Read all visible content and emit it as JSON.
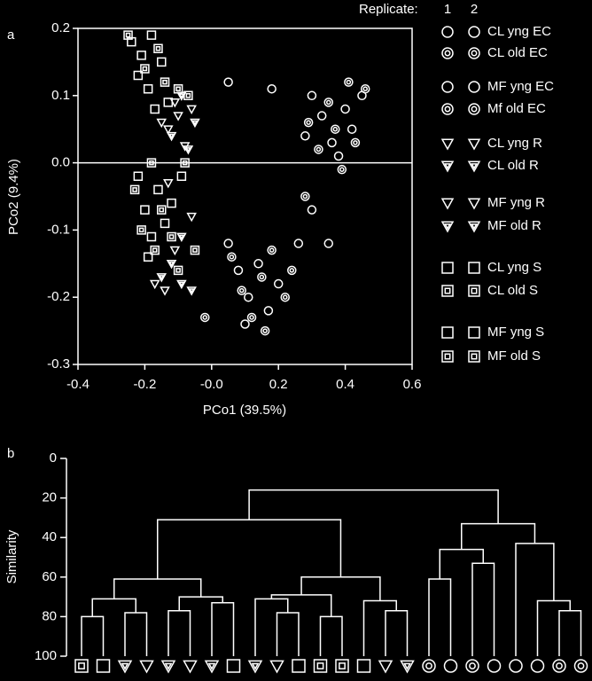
{
  "chart_data": [
    {
      "type": "scatter",
      "panel_label": "a",
      "xlabel": "PCo1 (39.5%)",
      "ylabel": "PCo2 (9.4%)",
      "xlim": [
        -0.4,
        0.6
      ],
      "ylim": [
        -0.3,
        0.2
      ],
      "xticks": [
        -0.4,
        -0.2,
        {
          "value": 0,
          "label": "-0.0"
        },
        0.2,
        0.4,
        0.6
      ],
      "yticks": [
        0.2,
        0.1,
        {
          "value": 0,
          "label": "0.0"
        },
        -0.1,
        -0.2,
        -0.3
      ],
      "zero_line": true,
      "color": "#ffffff",
      "legend_title": "Replicate:",
      "replicates": [
        "1",
        "2"
      ],
      "series": [
        {
          "name": "CL yng EC",
          "marker": "circle",
          "x": [
            0.28,
            0.33,
            0.36,
            0.4,
            0.42,
            0.45,
            0.38,
            0.3,
            0.05,
            0.18
          ],
          "y": [
            0.04,
            0.07,
            0.03,
            0.08,
            0.05,
            0.1,
            0.01,
            0.1,
            0.12,
            0.11
          ]
        },
        {
          "name": "CL old EC",
          "marker": "circle-double",
          "x": [
            0.32,
            0.35,
            0.39,
            0.43,
            0.46,
            0.29,
            0.41,
            0.37
          ],
          "y": [
            0.02,
            0.09,
            -0.01,
            0.03,
            0.11,
            0.06,
            0.12,
            0.05
          ]
        },
        {
          "name": "MF yng EC",
          "marker": "circle",
          "x": [
            0.05,
            0.08,
            0.11,
            0.14,
            0.17,
            0.2,
            0.1,
            0.26,
            0.35,
            0.3
          ],
          "y": [
            -0.12,
            -0.16,
            -0.2,
            -0.15,
            -0.22,
            -0.18,
            -0.24,
            -0.12,
            -0.12,
            -0.07
          ]
        },
        {
          "name": "Mf old EC",
          "marker": "circle-double",
          "x": [
            0.06,
            0.09,
            0.12,
            0.15,
            0.18,
            0.22,
            0.28,
            -0.02,
            0.16,
            0.24
          ],
          "y": [
            -0.14,
            -0.19,
            -0.23,
            -0.17,
            -0.13,
            -0.2,
            -0.05,
            -0.23,
            -0.25,
            -0.16
          ]
        },
        {
          "name": "CL yng R",
          "marker": "triangle",
          "x": [
            -0.13,
            -0.1,
            -0.06,
            -0.15,
            -0.08,
            -0.11
          ],
          "y": [
            0.05,
            0.07,
            0.08,
            0.06,
            0.025,
            0.09
          ]
        },
        {
          "name": "CL old R",
          "marker": "triangle-double",
          "x": [
            -0.07,
            -0.12,
            -0.05,
            -0.09
          ],
          "y": [
            0.02,
            0.04,
            0.06,
            0.1
          ]
        },
        {
          "name": "MF yng R",
          "marker": "triangle",
          "x": [
            -0.17,
            -0.14,
            -0.11,
            -0.13,
            -0.06
          ],
          "y": [
            -0.18,
            -0.19,
            -0.13,
            -0.03,
            -0.08
          ]
        },
        {
          "name": "MF old R",
          "marker": "triangle-double",
          "x": [
            -0.15,
            -0.12,
            -0.09,
            -0.06,
            -0.09
          ],
          "y": [
            -0.17,
            -0.15,
            -0.18,
            -0.19,
            -0.11
          ]
        },
        {
          "name": "CL yng S",
          "marker": "square",
          "x": [
            -0.24,
            -0.21,
            -0.18,
            -0.22,
            -0.19,
            -0.15,
            -0.13,
            -0.17
          ],
          "y": [
            0.18,
            0.16,
            0.19,
            0.13,
            0.11,
            0.15,
            0.09,
            0.08
          ]
        },
        {
          "name": "CL old S",
          "marker": "square-double",
          "x": [
            -0.25,
            -0.2,
            -0.16,
            -0.14,
            -0.1,
            -0.07,
            -0.08
          ],
          "y": [
            0.19,
            0.14,
            0.17,
            0.12,
            0.11,
            0.1,
            0.0
          ]
        },
        {
          "name": "MF yng S",
          "marker": "square",
          "x": [
            -0.22,
            -0.2,
            -0.18,
            -0.16,
            -0.14,
            -0.19,
            -0.12,
            -0.09
          ],
          "y": [
            -0.02,
            -0.07,
            -0.11,
            -0.04,
            -0.09,
            -0.14,
            -0.06,
            -0.02
          ]
        },
        {
          "name": "MF old S",
          "marker": "square-double",
          "x": [
            -0.23,
            -0.21,
            -0.17,
            -0.15,
            -0.12,
            -0.1,
            -0.05,
            -0.18
          ],
          "y": [
            -0.04,
            -0.1,
            -0.13,
            -0.07,
            -0.11,
            -0.16,
            -0.13,
            0.0
          ]
        }
      ]
    },
    {
      "type": "dendrogram",
      "panel_label": "b",
      "ylabel": "Similarity",
      "ylim": [
        0,
        100
      ],
      "yticks": [
        0,
        20,
        40,
        60,
        80,
        100
      ],
      "color": "#ffffff",
      "tree": {
        "similarity": 16,
        "children": [
          {
            "similarity": 31,
            "children": [
              {
                "similarity": 61,
                "children": [
                  {
                    "similarity": 71,
                    "children": [
                      {
                        "similarity": 80,
                        "children": [
                          {
                            "marker": "square-double"
                          },
                          {
                            "marker": "square"
                          }
                        ]
                      },
                      {
                        "similarity": 78,
                        "children": [
                          {
                            "marker": "triangle-double"
                          },
                          {
                            "marker": "triangle"
                          }
                        ]
                      }
                    ]
                  },
                  {
                    "similarity": 70,
                    "children": [
                      {
                        "similarity": 77,
                        "children": [
                          {
                            "marker": "triangle-double"
                          },
                          {
                            "marker": "triangle"
                          }
                        ]
                      },
                      {
                        "similarity": 73,
                        "children": [
                          {
                            "marker": "triangle-double"
                          },
                          {
                            "marker": "square"
                          }
                        ]
                      }
                    ]
                  }
                ]
              },
              {
                "similarity": 60,
                "children": [
                  {
                    "similarity": 69,
                    "children": [
                      {
                        "similarity": 71,
                        "children": [
                          {
                            "marker": "triangle-double"
                          },
                          {
                            "similarity": 78,
                            "children": [
                              {
                                "marker": "triangle"
                              },
                              {
                                "marker": "square"
                              }
                            ]
                          }
                        ]
                      },
                      {
                        "similarity": 80,
                        "children": [
                          {
                            "marker": "square-double"
                          },
                          {
                            "marker": "square-double"
                          }
                        ]
                      }
                    ]
                  },
                  {
                    "similarity": 72,
                    "children": [
                      {
                        "marker": "square"
                      },
                      {
                        "similarity": 77,
                        "children": [
                          {
                            "marker": "triangle"
                          },
                          {
                            "marker": "triangle-double"
                          }
                        ]
                      }
                    ]
                  }
                ]
              }
            ]
          },
          {
            "similarity": 33,
            "children": [
              {
                "similarity": 46,
                "children": [
                  {
                    "similarity": 61,
                    "children": [
                      {
                        "marker": "circle-double"
                      },
                      {
                        "marker": "circle"
                      }
                    ]
                  },
                  {
                    "similarity": 53,
                    "children": [
                      {
                        "marker": "circle-double"
                      },
                      {
                        "marker": "circle"
                      }
                    ]
                  }
                ]
              },
              {
                "similarity": 43,
                "children": [
                  {
                    "marker": "circle"
                  },
                  {
                    "similarity": 72,
                    "children": [
                      {
                        "marker": "circle"
                      },
                      {
                        "similarity": 77,
                        "children": [
                          {
                            "marker": "circle-double"
                          },
                          {
                            "marker": "circle-double"
                          }
                        ]
                      }
                    ]
                  }
                ]
              }
            ]
          }
        ]
      }
    }
  ]
}
